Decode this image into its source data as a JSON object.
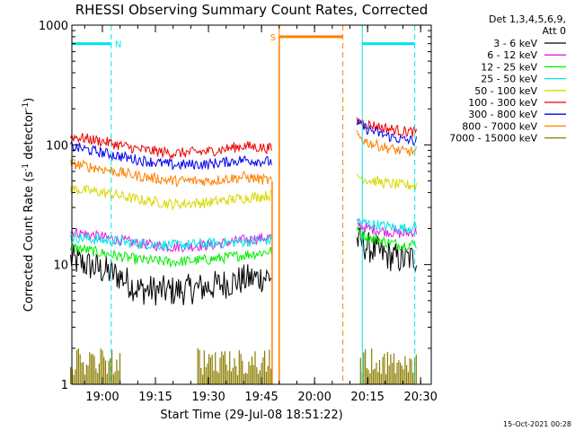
{
  "chart_data": {
    "type": "line",
    "title": "RHESSI Observing Summary Count Rates, Corrected",
    "xlabel": "Start Time (29-Jul-08 18:51:22)",
    "ylabel_main": "Corrected Count Rate (s",
    "ylabel_sup1": "-1",
    "ylabel_mid": " detector",
    "ylabel_sup2": "-1",
    "ylabel_end": ")",
    "x_scale": "time (minutes)",
    "xlim": [
      "18:51:22",
      "20:33:00"
    ],
    "y_scale": "log",
    "ylim": [
      1,
      1000
    ],
    "grid": false,
    "x_ticks": [
      "19:00",
      "19:15",
      "19:30",
      "19:45",
      "20:00",
      "20:15",
      "20:30"
    ],
    "y_ticks": [
      "1",
      "10",
      "100",
      "1000"
    ],
    "legend_header": [
      "Det 1,3,4,5,6,9,",
      "Att 0"
    ],
    "legend_position": "right",
    "timestamp": "15-Oct-2021 00:28",
    "series": [
      {
        "name": "3 - 6 keV",
        "color": "#000000",
        "segments": [
          {
            "t": [
              "18:51",
              "19:00",
              "19:05",
              "19:10",
              "19:20",
              "19:30",
              "19:40",
              "19:48"
            ],
            "v": [
              11,
              9,
              8,
              6.2,
              6,
              6.5,
              7.5,
              8
            ]
          },
          {
            "t": [
              "20:12",
              "20:15",
              "20:20",
              "20:25",
              "20:29"
            ],
            "v": [
              16,
              14,
              12,
              11,
              11.5
            ]
          }
        ]
      },
      {
        "name": "6 - 12 keV",
        "color": "#e01fe0",
        "segments": [
          {
            "t": [
              "18:51",
              "19:00",
              "19:10",
              "19:20",
              "19:30",
              "19:40",
              "19:48"
            ],
            "v": [
              19,
              17,
              15,
              14,
              14.5,
              16,
              17
            ]
          },
          {
            "t": [
              "20:12",
              "20:15",
              "20:20",
              "20:25",
              "20:29"
            ],
            "v": [
              22,
              20,
              19,
              18,
              19
            ]
          }
        ]
      },
      {
        "name": "12 - 25 keV",
        "color": "#00ee00",
        "segments": [
          {
            "t": [
              "18:51",
              "19:00",
              "19:10",
              "19:20",
              "19:30",
              "19:40",
              "19:48"
            ],
            "v": [
              14,
              12.5,
              11,
              10.5,
              11,
              12,
              13
            ]
          },
          {
            "t": [
              "20:12",
              "20:15",
              "20:20",
              "20:25",
              "20:29"
            ],
            "v": [
              19,
              17,
              15.5,
              14.5,
              15
            ]
          }
        ]
      },
      {
        "name": "25 - 50 keV",
        "color": "#00e5e5",
        "segments": [
          {
            "t": [
              "18:51",
              "19:00",
              "19:10",
              "19:20",
              "19:30",
              "19:40",
              "19:48"
            ],
            "v": [
              17,
              16,
              15,
              14.5,
              15,
              15.5,
              16
            ]
          },
          {
            "t": [
              "20:12",
              "20:15",
              "20:20",
              "20:25",
              "20:29"
            ],
            "v": [
              23,
              22,
              21,
              20,
              21
            ]
          }
        ]
      },
      {
        "name": "50 - 100 keV",
        "color": "#d8d800",
        "segments": [
          {
            "t": [
              "18:51",
              "19:00",
              "19:10",
              "19:20",
              "19:30",
              "19:40",
              "19:48"
            ],
            "v": [
              43,
              40,
              35,
              32,
              33,
              36,
              38
            ]
          },
          {
            "t": [
              "20:12",
              "20:15",
              "20:20",
              "20:25",
              "20:29"
            ],
            "v": [
              55,
              51,
              48,
              46,
              46
            ]
          }
        ]
      },
      {
        "name": "100 - 300 keV",
        "color": "#ee0000",
        "segments": [
          {
            "t": [
              "18:51",
              "19:00",
              "19:10",
              "19:20",
              "19:30",
              "19:40",
              "19:48"
            ],
            "v": [
              118,
              107,
              92,
              85,
              88,
              98,
              93
            ]
          },
          {
            "t": [
              "20:12",
              "20:15",
              "20:20",
              "20:25",
              "20:29"
            ],
            "v": [
              160,
              148,
              138,
              130,
              128
            ]
          }
        ]
      },
      {
        "name": "300 - 800 keV",
        "color": "#0000ee",
        "segments": [
          {
            "t": [
              "18:51",
              "19:00",
              "19:10",
              "19:20",
              "19:30",
              "19:40",
              "19:48"
            ],
            "v": [
              97,
              86,
              75,
              68,
              69,
              75,
              72
            ]
          },
          {
            "t": [
              "20:12",
              "20:15",
              "20:20",
              "20:25",
              "20:29"
            ],
            "v": [
              150,
              135,
              120,
              110,
              108
            ]
          }
        ]
      },
      {
        "name": "800 - 7000 keV",
        "color": "#ff8000",
        "segments": [
          {
            "t": [
              "18:51",
              "19:00",
              "19:10",
              "19:20",
              "19:30",
              "19:40",
              "19:48"
            ],
            "v": [
              70,
              63,
              55,
              50,
              50,
              54,
              50
            ]
          },
          {
            "t": [
              "20:12",
              "20:15",
              "20:20",
              "20:25",
              "20:29"
            ],
            "v": [
              120,
              105,
              95,
              88,
              88
            ]
          }
        ]
      },
      {
        "name": "7000 - 15000 keV",
        "color": "#8b7d00",
        "segments": [
          {
            "t": [
              "18:51",
              "19:05"
            ],
            "v": [
              2,
              2
            ]
          },
          {
            "t": [
              "19:27",
              "19:48"
            ],
            "v": [
              2,
              2
            ]
          },
          {
            "t": [
              "20:13",
              "20:29"
            ],
            "v": [
              2,
              2
            ]
          }
        ]
      }
    ],
    "flags": [
      {
        "label": "N",
        "color": "#00e5e5",
        "start": "18:51:22",
        "end": "19:02:30",
        "level": 700
      },
      {
        "label": "S",
        "color": "#ff8000",
        "start": "19:50:00",
        "end": "20:08:00",
        "level": 800
      },
      {
        "label": "",
        "color": "#00e5e5",
        "start": "20:13:30",
        "end": "20:28:20",
        "level": 700
      }
    ],
    "spike": {
      "color": "#ff8000",
      "start": "19:48:00",
      "end": "19:50:00"
    }
  }
}
